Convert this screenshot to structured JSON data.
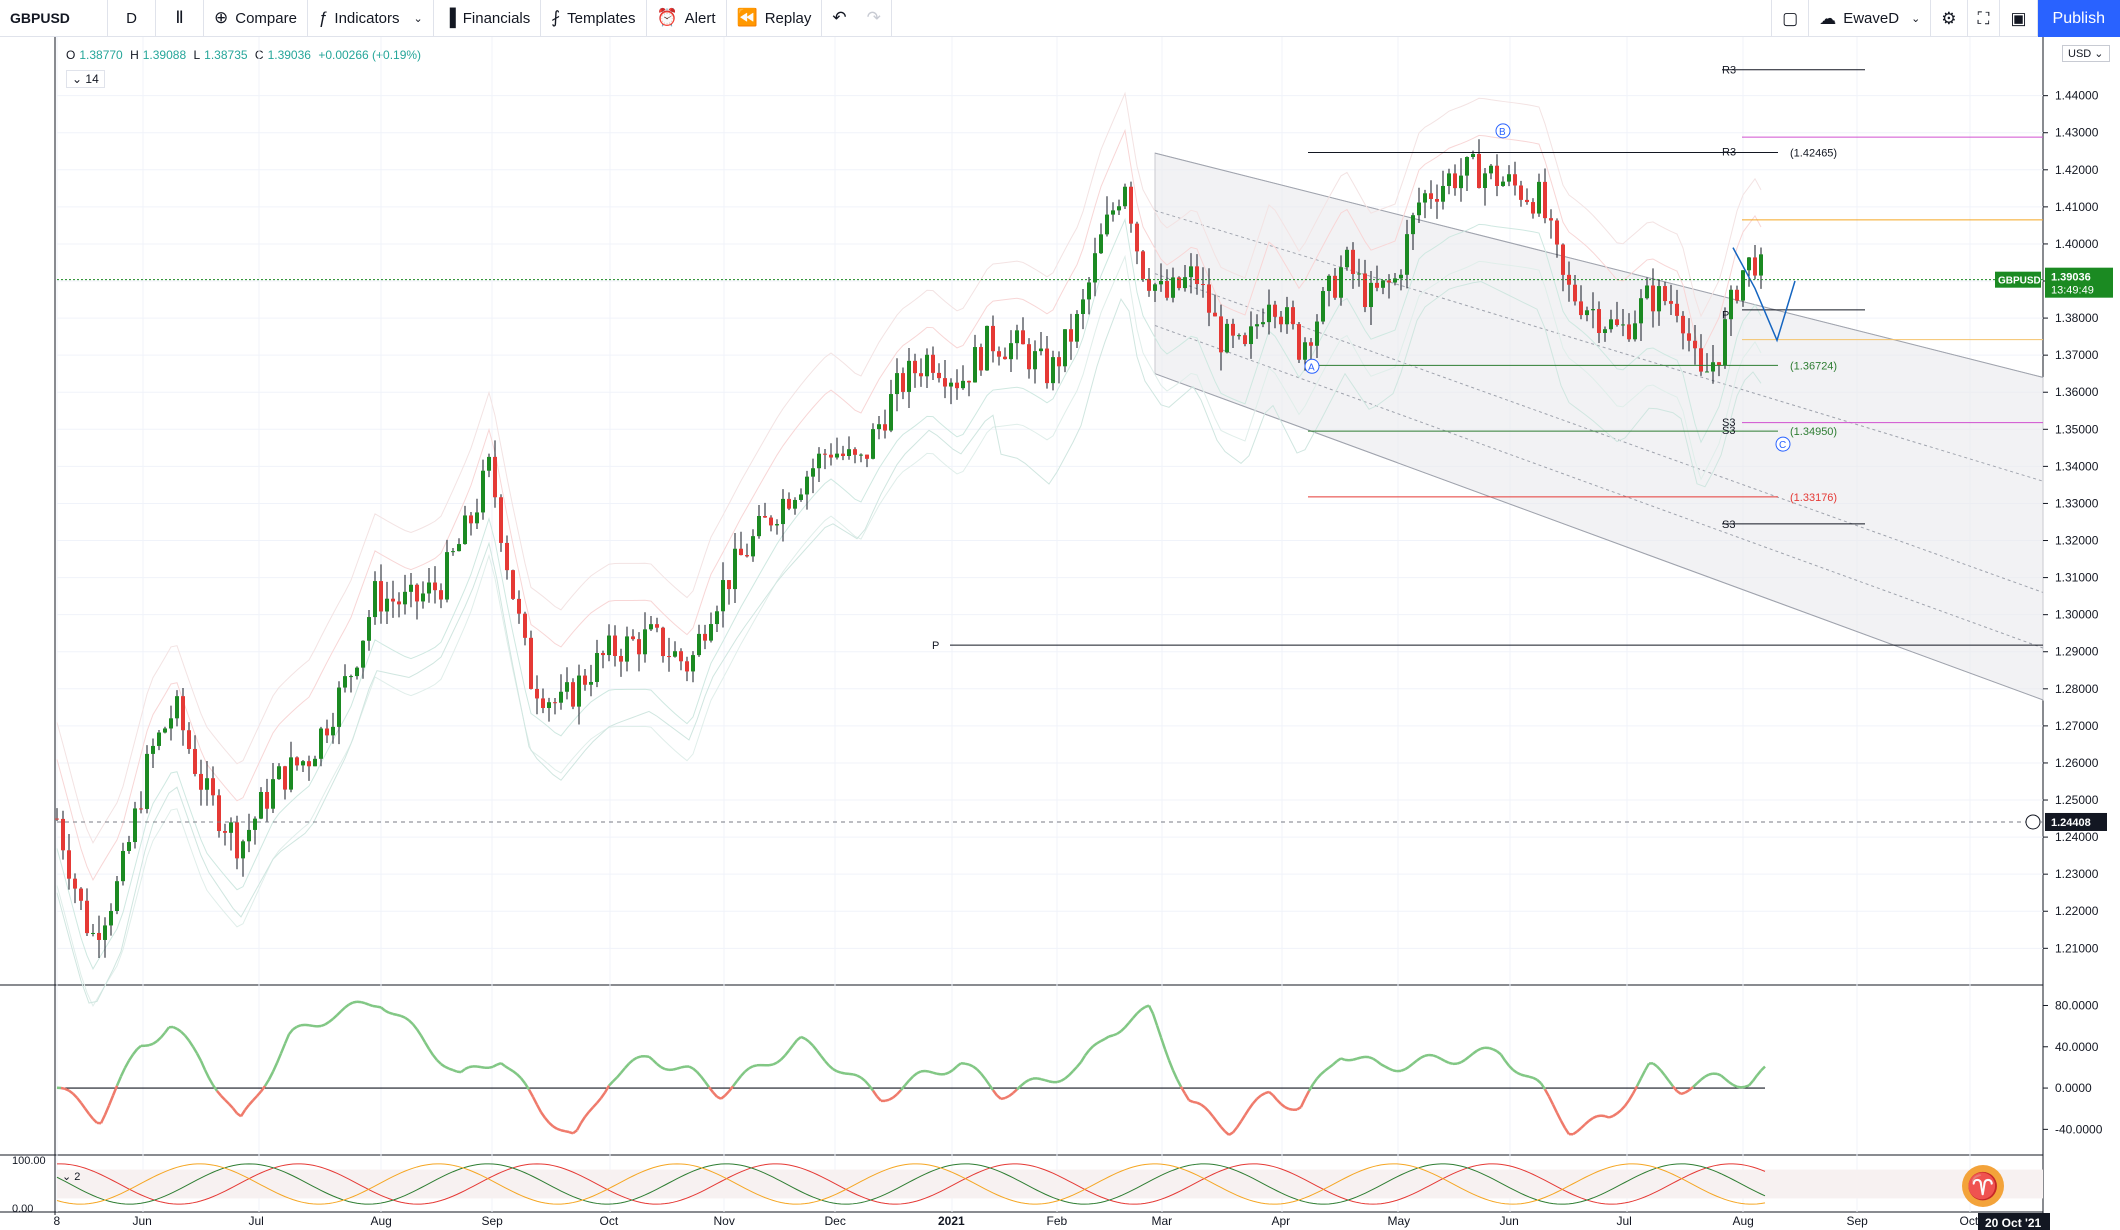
{
  "toolbar": {
    "symbol": "GBPUSD",
    "interval": "D",
    "compare": "Compare",
    "indicators": "Indicators",
    "financials": "Financials",
    "templates": "Templates",
    "alert": "Alert",
    "replay": "Replay",
    "layout_name": "EwaveD",
    "publish": "Publish"
  },
  "legend": {
    "o_label": "O",
    "o": "1.38770",
    "h_label": "H",
    "h": "1.39088",
    "l_label": "L",
    "l": "1.38735",
    "c_label": "C",
    "c": "1.39036",
    "change": "+0.00266 (+0.19%)",
    "study_value": "14",
    "osc_value": "2",
    "currency": "USD"
  },
  "chart_data": {
    "type": "candlestick",
    "symbol": "GBPUSD",
    "price_axis": [
      "1.44000",
      "1.43000",
      "1.42000",
      "1.41000",
      "1.40000",
      "1.39000",
      "1.38000",
      "1.37000",
      "1.36000",
      "1.35000",
      "1.34000",
      "1.33000",
      "1.32000",
      "1.31000",
      "1.30000",
      "1.29000",
      "1.28000",
      "1.27000",
      "1.26000",
      "1.25000",
      "1.24000",
      "1.23000",
      "1.22000",
      "1.21000"
    ],
    "ylim": [
      1.2055,
      1.4453
    ],
    "time_axis": [
      "8",
      "Jun",
      "Jul",
      "Aug",
      "Sep",
      "Oct",
      "Nov",
      "Dec",
      "2021",
      "Feb",
      "Mar",
      "Apr",
      "May",
      "Jun",
      "Jul",
      "Aug",
      "Sep",
      "Oct",
      "20 Oct '21"
    ],
    "last_price": {
      "label": "GBPUSD",
      "value": "1.39036",
      "countdown": "13:49:49"
    },
    "crosshair_price": "1.24408",
    "levels": [
      {
        "label": "R3",
        "price": "1.42465"
      },
      {
        "label": "",
        "price": "1.36724"
      },
      {
        "label": "S3",
        "price": "1.34950"
      },
      {
        "label": "",
        "price": "1.33176"
      }
    ],
    "pivot_labels": [
      "R3",
      "P",
      "S3",
      "P",
      "R3",
      "S3"
    ],
    "wave_labels": [
      "A",
      "B",
      "C"
    ],
    "osc_axis": [
      "80.0000",
      "40.0000",
      "0.0000",
      "-40.0000"
    ],
    "osc2_axis": [
      "100.00",
      "0.00"
    ],
    "colors": {
      "up": "#26a69a",
      "bar_up": "#1b8a22",
      "down": "#e53935",
      "osc_up": "#81c784",
      "osc_down": "#ef7a6b",
      "last_price_bg": "#1b8a22"
    }
  }
}
